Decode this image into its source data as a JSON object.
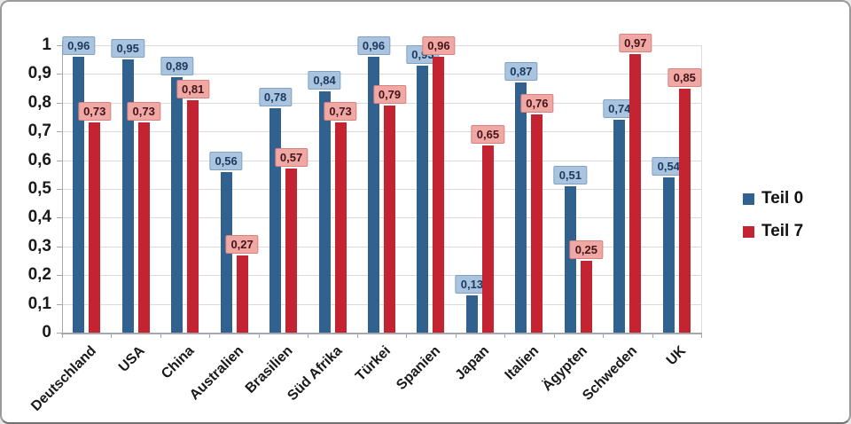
{
  "chart_data": {
    "type": "bar",
    "title": "",
    "xlabel": "",
    "ylabel": "",
    "grid": true,
    "legend_position": "right",
    "decimal_separator": ",",
    "ylim": [
      0,
      1
    ],
    "yticks": [
      {
        "label": "0",
        "value": 0
      },
      {
        "label": "0,1",
        "value": 0.1
      },
      {
        "label": "0,2",
        "value": 0.2
      },
      {
        "label": "0,3",
        "value": 0.3
      },
      {
        "label": "0,4",
        "value": 0.4
      },
      {
        "label": "0,5",
        "value": 0.5
      },
      {
        "label": "0,6",
        "value": 0.6
      },
      {
        "label": "0,7",
        "value": 0.7
      },
      {
        "label": "0,8",
        "value": 0.8
      },
      {
        "label": "0,9",
        "value": 0.9
      },
      {
        "label": "1",
        "value": 1
      }
    ],
    "categories": [
      "Deutschland",
      "USA",
      "China",
      "Australien",
      "Brasilien",
      "Süd Afrika",
      "Türkei",
      "Spanien",
      "Japan",
      "Italien",
      "Ägypten",
      "Schweden",
      "UK"
    ],
    "series": [
      {
        "name": "Teil 0",
        "color": "#31618F",
        "label_bg": "#AAC3DE",
        "label_border": "#7FA2C6",
        "label_text_color": "#1B3A5F",
        "values": [
          0.96,
          0.95,
          0.89,
          0.56,
          0.78,
          0.84,
          0.96,
          0.93,
          0.13,
          0.87,
          0.51,
          0.74,
          0.54
        ]
      },
      {
        "name": "Teil 7",
        "color": "#C42431",
        "label_bg": "#F0A8A4",
        "label_border": "#D9817D",
        "label_text_color": "#44141A",
        "values": [
          0.73,
          0.73,
          0.81,
          0.27,
          0.57,
          0.73,
          0.79,
          0.96,
          0.65,
          0.76,
          0.25,
          0.97,
          0.85
        ]
      }
    ]
  }
}
